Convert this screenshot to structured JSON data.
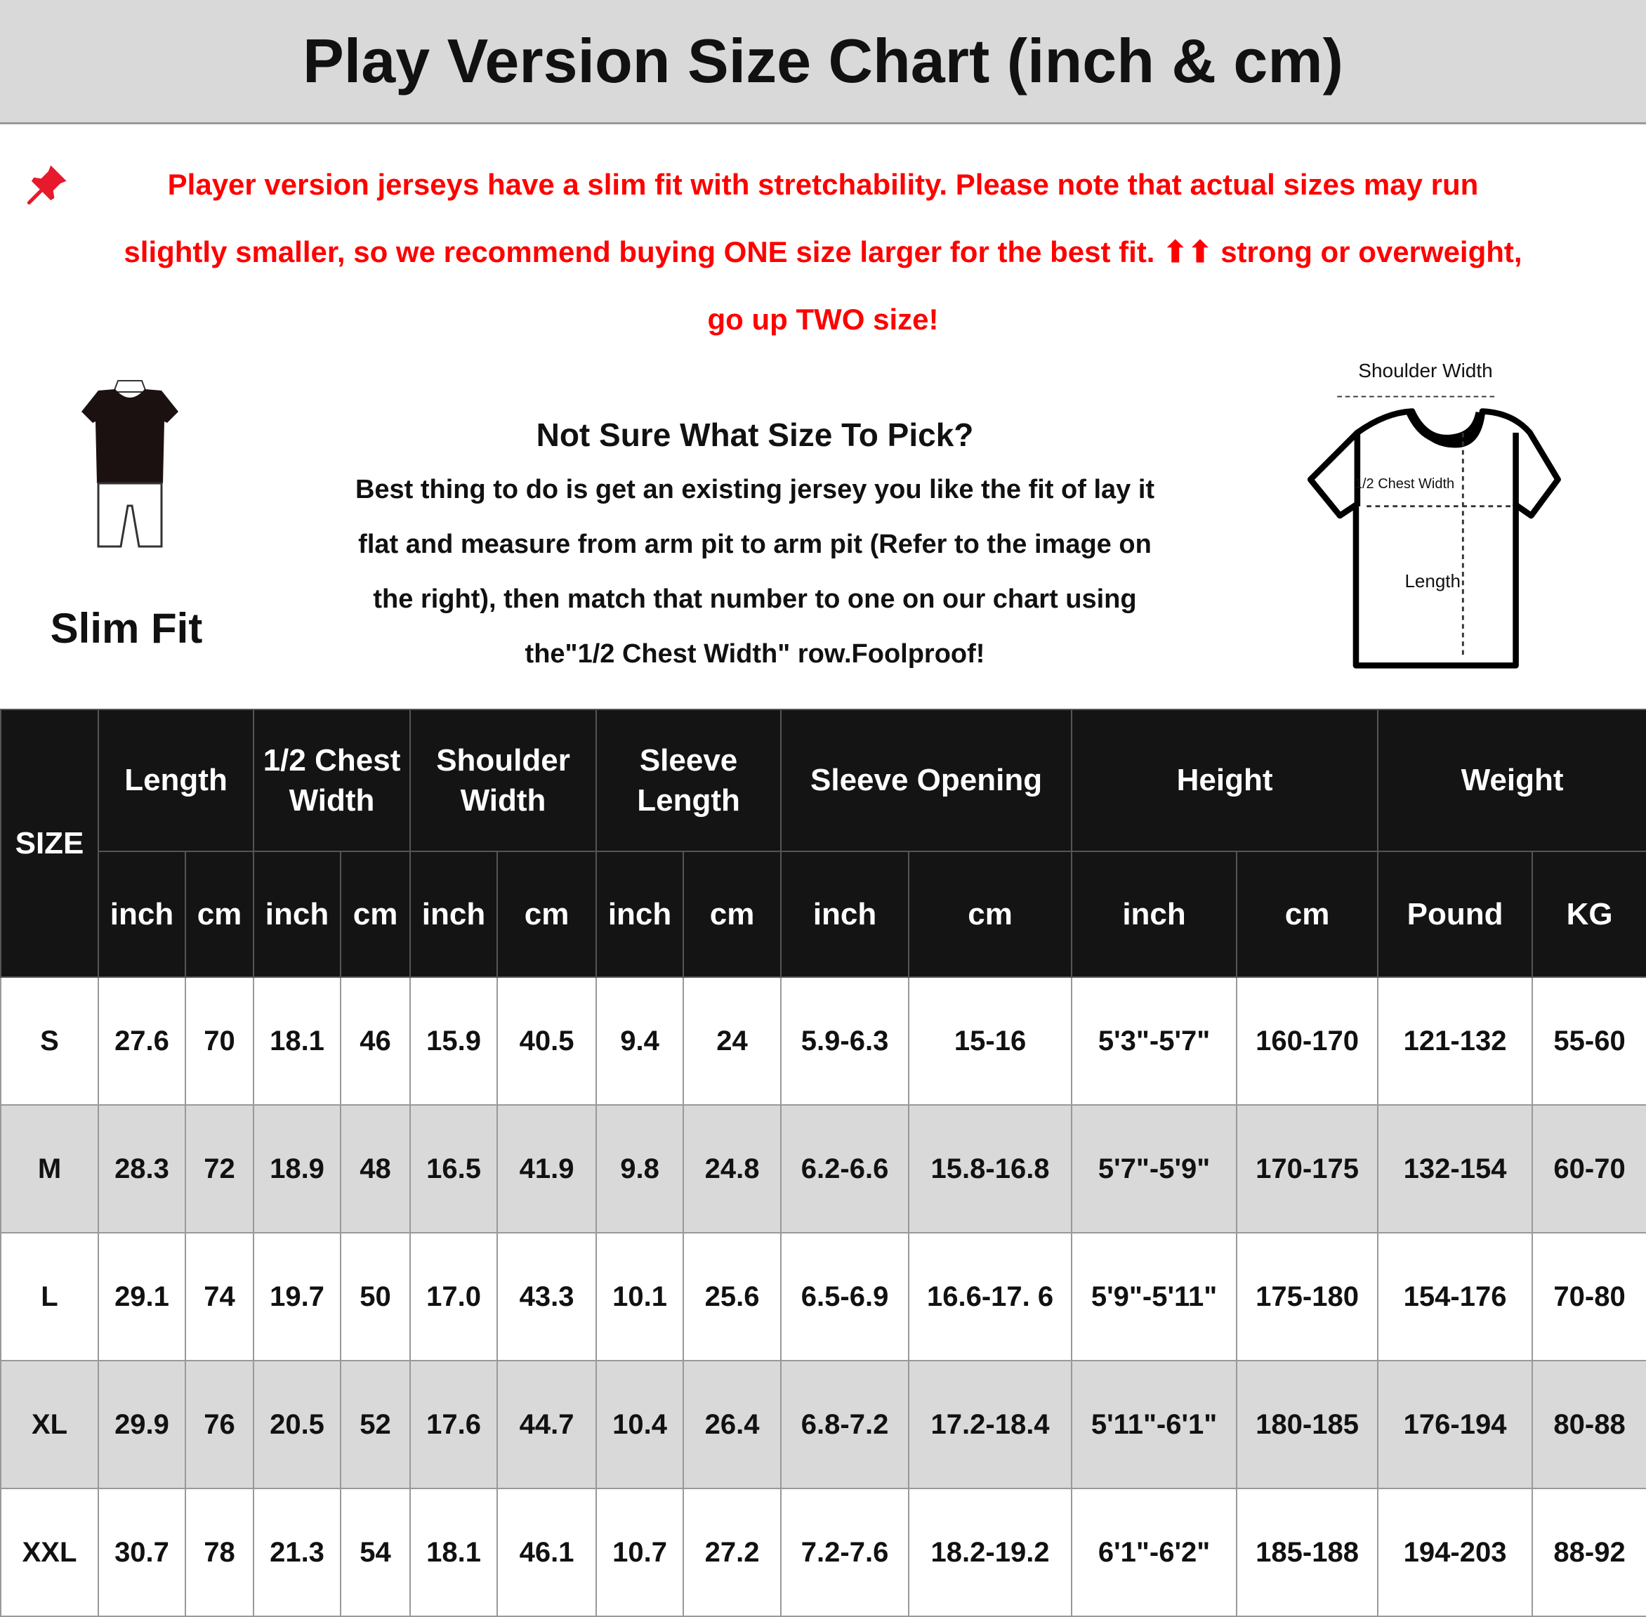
{
  "title": "Play Version Size Chart (inch & cm)",
  "notice": {
    "icon": "pushpin-icon",
    "color": "#ff0000",
    "lines": [
      "Player version jerseys have a slim fit with stretchability. Please note that actual sizes may run",
      "slightly smaller, so we recommend buying ONE size larger for the best fit. ⬆⬆ strong or overweight,",
      "go up TWO size!"
    ]
  },
  "fit": {
    "label": "Slim Fit",
    "icon": "slim-fit-mannequin-icon"
  },
  "help": {
    "lines": [
      "Not Sure What Size To Pick?",
      "Best thing to do is get an existing jersey you like the fit of lay it",
      "flat and measure from arm pit to arm pit (Refer to the image on",
      "the right), then match that number to one on our chart using",
      "the\"1/2 Chest Width\" row.Foolproof!"
    ]
  },
  "diagram": {
    "icon": "tshirt-measure-icon",
    "shoulder": "Shoulder Width",
    "chest": "1/2 Chest Width",
    "length": "Length"
  },
  "table": {
    "size_header": "SIZE",
    "groups": [
      "Length",
      "1/2 Chest Width",
      "Shoulder Width",
      "Sleeve Length",
      "Sleeve Opening",
      "Height",
      "Weight"
    ],
    "units": [
      "inch",
      "cm",
      "inch",
      "cm",
      "inch",
      "cm",
      "inch",
      "cm",
      "inch",
      "cm",
      "inch",
      "cm",
      "Pound",
      "KG"
    ],
    "rows": [
      [
        "S",
        "27.6",
        "70",
        "18.1",
        "46",
        "15.9",
        "40.5",
        "9.4",
        "24",
        "5.9-6.3",
        "15-16",
        "5'3\"-5'7\"",
        "160-170",
        "121-132",
        "55-60"
      ],
      [
        "M",
        "28.3",
        "72",
        "18.9",
        "48",
        "16.5",
        "41.9",
        "9.8",
        "24.8",
        "6.2-6.6",
        "15.8-16.8",
        "5'7\"-5'9\"",
        "170-175",
        "132-154",
        "60-70"
      ],
      [
        "L",
        "29.1",
        "74",
        "19.7",
        "50",
        "17.0",
        "43.3",
        "10.1",
        "25.6",
        "6.5-6.9",
        "16.6-17. 6",
        "5'9\"-5'11\"",
        "175-180",
        "154-176",
        "70-80"
      ],
      [
        "XL",
        "29.9",
        "76",
        "20.5",
        "52",
        "17.6",
        "44.7",
        "10.4",
        "26.4",
        "6.8-7.2",
        "17.2-18.4",
        "5'11\"-6'1\"",
        "180-185",
        "176-194",
        "80-88"
      ],
      [
        "XXL",
        "30.7",
        "78",
        "21.3",
        "54",
        "18.1",
        "46.1",
        "10.7",
        "27.2",
        "7.2-7.6",
        "18.2-19.2",
        "6'1\"-6'2\"",
        "185-188",
        "194-203",
        "88-92"
      ]
    ]
  }
}
